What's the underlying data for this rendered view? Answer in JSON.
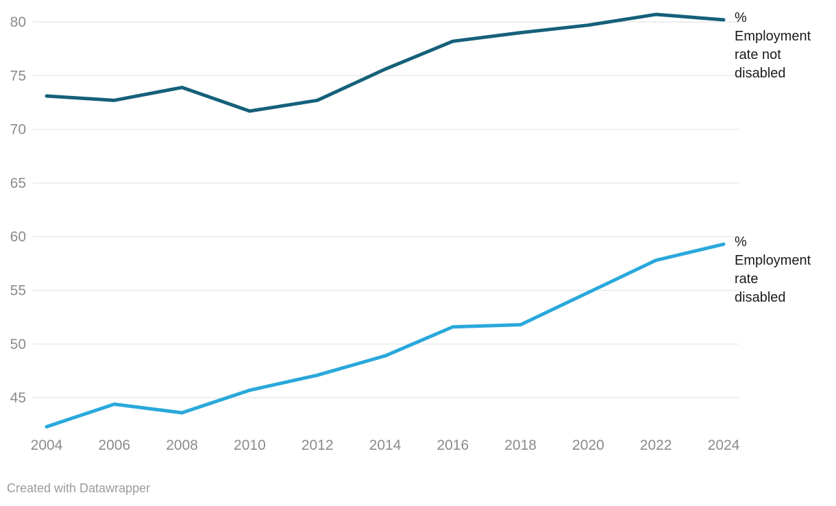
{
  "chart": {
    "footer_credit": "Created with Datawrapper",
    "colors": {
      "background": "#ffffff",
      "gridline": "#e8e8e8",
      "tick_label": "#8b8b8b",
      "series_label_text": "#1a1a1a",
      "footer_text": "#9b9b9b",
      "not_disabled_line": "#15607a",
      "disabled_line": "#29a8db"
    }
  },
  "chart_data": {
    "type": "line",
    "title": "",
    "xlabel": "",
    "ylabel": "%",
    "x": [
      2004,
      2006,
      2008,
      2010,
      2012,
      2014,
      2016,
      2018,
      2020,
      2022,
      2024
    ],
    "series": [
      {
        "name": "% Employment rate not disabled",
        "label_lines": [
          "%",
          "Employment",
          "rate not",
          "disabled"
        ],
        "color": "#15607a",
        "values": [
          73.1,
          72.7,
          73.9,
          71.7,
          72.7,
          75.6,
          78.2,
          79.0,
          79.7,
          80.7,
          80.2
        ]
      },
      {
        "name": "% Employment rate disabled",
        "label_lines": [
          "%",
          "Employment",
          "rate",
          "disabled"
        ],
        "color": "#29a8db",
        "values": [
          42.3,
          44.4,
          43.6,
          45.7,
          47.1,
          48.9,
          51.6,
          51.8,
          54.8,
          57.8,
          59.3
        ]
      }
    ],
    "x_ticks": [
      2004,
      2006,
      2008,
      2010,
      2012,
      2014,
      2016,
      2018,
      2020,
      2022,
      2024
    ],
    "y_ticks": [
      45,
      50,
      55,
      60,
      65,
      70,
      75,
      80
    ],
    "ylim": [
      41.8,
      82.0
    ],
    "grid": true,
    "legend_position": "direct-labels-right",
    "line_width": 5
  }
}
